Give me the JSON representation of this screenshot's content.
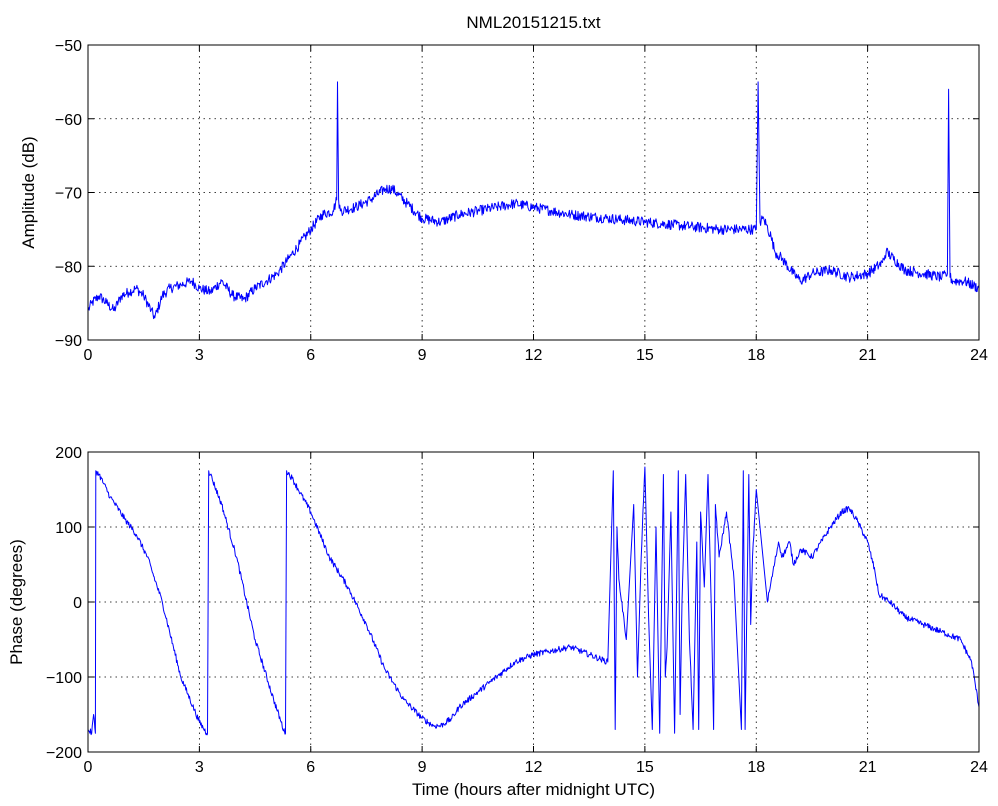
{
  "chart_data": [
    {
      "type": "line",
      "title": "NML20151215.txt",
      "xlabel": "",
      "ylabel": "Amplitude (dB)",
      "xlim": [
        0,
        24
      ],
      "ylim": [
        -90,
        -50
      ],
      "xticks": [
        0,
        3,
        6,
        9,
        12,
        15,
        18,
        21,
        24
      ],
      "yticks": [
        -90,
        -80,
        -70,
        -60,
        -50
      ],
      "xtick_labels": [
        "0",
        "3",
        "6",
        "9",
        "12",
        "15",
        "18",
        "21",
        "24"
      ],
      "ytick_labels": [
        "−90",
        "−80",
        "−70",
        "−60",
        "−50"
      ],
      "grid": true,
      "line_color": "#0000ff",
      "series": [
        {
          "x": [
            0,
            0.1,
            0.3,
            0.5,
            0.7,
            0.9,
            1.1,
            1.3,
            1.5,
            1.7,
            1.8,
            2.0,
            2.2,
            2.5,
            2.8,
            3.0,
            3.3,
            3.6,
            3.9,
            4.2,
            4.5,
            4.8,
            5.1,
            5.4,
            5.7,
            6.0,
            6.3,
            6.6,
            6.7,
            6.72,
            6.75,
            6.8,
            7.2,
            7.6,
            8.0,
            8.2,
            8.6,
            9.0,
            9.5,
            10.0,
            10.5,
            11.0,
            11.5,
            12.0,
            12.5,
            13.0,
            14.0,
            15.0,
            16.0,
            17.0,
            17.5,
            18.0,
            18.05,
            18.1,
            18.2,
            18.4,
            18.5,
            18.7,
            19.0,
            19.2,
            19.5,
            20.0,
            20.5,
            21.0,
            21.4,
            21.5,
            22.0,
            22.5,
            23.0,
            23.15,
            23.18,
            23.22,
            23.3,
            23.6,
            24.0
          ],
          "y": [
            -86,
            -85,
            -84,
            -85,
            -86,
            -84,
            -83.5,
            -83,
            -84,
            -86,
            -87,
            -84,
            -83,
            -82.5,
            -82,
            -83,
            -83.5,
            -82,
            -84,
            -84.5,
            -83,
            -82,
            -81,
            -79,
            -77,
            -75,
            -73,
            -72.5,
            -71,
            -55,
            -71,
            -72.5,
            -72,
            -71,
            -69.5,
            -69.5,
            -71.5,
            -73.5,
            -74,
            -73,
            -72.5,
            -72,
            -71.5,
            -72,
            -72.5,
            -73,
            -73.5,
            -74,
            -74.5,
            -75,
            -75,
            -75,
            -55,
            -74,
            -73.5,
            -76,
            -78,
            -79,
            -81,
            -82,
            -81,
            -80.5,
            -81.5,
            -81,
            -79.5,
            -78,
            -80.5,
            -81,
            -81.5,
            -81,
            -56,
            -81.5,
            -82,
            -82,
            -83
          ]
        }
      ]
    },
    {
      "type": "line",
      "title": "",
      "xlabel": "Time (hours after midnight UTC)",
      "ylabel": "Phase (degrees)",
      "xlim": [
        0,
        24
      ],
      "ylim": [
        -200,
        200
      ],
      "xticks": [
        0,
        3,
        6,
        9,
        12,
        15,
        18,
        21,
        24
      ],
      "yticks": [
        -200,
        -100,
        0,
        100,
        200
      ],
      "xtick_labels": [
        "0",
        "3",
        "6",
        "9",
        "12",
        "15",
        "18",
        "21",
        "24"
      ],
      "ytick_labels": [
        "−200",
        "−100",
        "0",
        "100",
        "200"
      ],
      "grid": true,
      "line_color": "#0000ff",
      "series": [
        {
          "x": [
            0,
            0.1,
            0.15,
            0.2,
            0.21,
            0.3,
            0.6,
            1.0,
            1.3,
            1.6,
            2.0,
            2.5,
            3.0,
            3.2,
            3.22,
            3.25,
            3.3,
            3.6,
            4.0,
            4.5,
            5.0,
            5.3,
            5.32,
            5.35,
            5.5,
            6.0,
            6.5,
            7.0,
            7.5,
            8.0,
            8.5,
            9.0,
            9.3,
            9.5,
            9.8,
            10.0,
            10.5,
            11.0,
            11.5,
            12.0,
            12.5,
            13.0,
            13.5,
            14.0,
            14.15,
            14.2,
            14.25,
            14.3,
            14.5,
            14.7,
            14.8,
            14.9,
            15.0,
            15.1,
            15.2,
            15.3,
            15.4,
            15.5,
            15.55,
            15.6,
            15.7,
            15.8,
            15.9,
            15.95,
            16.0,
            16.1,
            16.2,
            16.3,
            16.4,
            16.45,
            16.5,
            16.6,
            16.7,
            16.8,
            16.85,
            16.9,
            17.0,
            17.2,
            17.4,
            17.6,
            17.65,
            17.7,
            17.8,
            17.85,
            17.9,
            18.0,
            18.3,
            18.6,
            18.7,
            18.9,
            19.0,
            19.2,
            19.5,
            20.0,
            20.3,
            20.5,
            20.7,
            21.0,
            21.2,
            21.3,
            21.6,
            22.0,
            22.5,
            23.0,
            23.5,
            23.8,
            24.0
          ],
          "y": [
            -170,
            -175,
            -150,
            -175,
            175,
            170,
            140,
            110,
            90,
            60,
            0,
            -100,
            -160,
            -175,
            -175,
            175,
            170,
            130,
            60,
            -50,
            -130,
            -175,
            -175,
            175,
            165,
            120,
            60,
            20,
            -30,
            -90,
            -130,
            -155,
            -165,
            -165,
            -155,
            -140,
            -120,
            -100,
            -80,
            -70,
            -65,
            -60,
            -70,
            -80,
            175,
            -170,
            100,
            30,
            -50,
            130,
            -100,
            60,
            180,
            -20,
            -170,
            100,
            -175,
            170,
            -100,
            -60,
            120,
            -175,
            175,
            -150,
            0,
            170,
            -50,
            -170,
            80,
            -170,
            120,
            20,
            170,
            -30,
            -170,
            130,
            60,
            120,
            30,
            -170,
            175,
            -170,
            170,
            -30,
            60,
            150,
            0,
            80,
            60,
            80,
            50,
            70,
            60,
            100,
            120,
            125,
            110,
            80,
            40,
            10,
            0,
            -20,
            -30,
            -40,
            -50,
            -80,
            -140
          ]
        }
      ]
    }
  ]
}
